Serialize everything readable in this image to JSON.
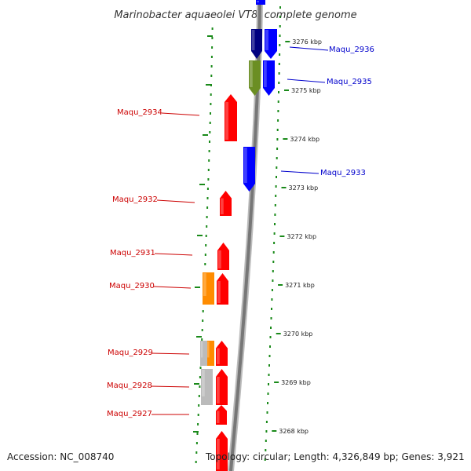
{
  "title": "Marinobacter aquaeolei VT8, complete genome",
  "accession": "Accession: NC_008740",
  "topology": "Topology: circular; Length: 4,326,849 bp; Genes: 3,921",
  "colors": {
    "backbone": "#777777",
    "dots": "#1a8a1a",
    "forward_label": "#0000cc",
    "reverse_label": "#cc0000",
    "red": "#ff0000",
    "blue": "#0000ff",
    "navy": "#000080",
    "olive": "#6b8e23",
    "orange": "#ff8c00",
    "gray": "#bbbbbb"
  },
  "ticks": [
    {
      "label": "3276 kbp"
    },
    {
      "label": "3275 kbp"
    },
    {
      "label": "3274 kbp"
    },
    {
      "label": "3273 kbp"
    },
    {
      "label": "3272 kbp"
    },
    {
      "label": "3271 kbp"
    },
    {
      "label": "3270 kbp"
    },
    {
      "label": "3269 kbp"
    },
    {
      "label": "3268 kbp"
    }
  ],
  "gene_labels": [
    {
      "name": "Maqu_2936",
      "strand": "forward"
    },
    {
      "name": "Maqu_2935",
      "strand": "forward"
    },
    {
      "name": "Maqu_2933",
      "strand": "forward"
    },
    {
      "name": "Maqu_2934",
      "strand": "reverse"
    },
    {
      "name": "Maqu_2932",
      "strand": "reverse"
    },
    {
      "name": "Maqu_2931",
      "strand": "reverse"
    },
    {
      "name": "Maqu_2930",
      "strand": "reverse"
    },
    {
      "name": "Maqu_2929",
      "strand": "reverse"
    },
    {
      "name": "Maqu_2928",
      "strand": "reverse"
    },
    {
      "name": "Maqu_2927",
      "strand": "reverse"
    }
  ],
  "features": [
    {
      "name": "gene-blue-1",
      "color": "blue"
    },
    {
      "name": "gene-navy-1",
      "color": "navy"
    },
    {
      "name": "gene-blue-2",
      "color": "blue"
    },
    {
      "name": "gene-olive-1",
      "color": "olive"
    },
    {
      "name": "gene-blue-3",
      "color": "blue"
    },
    {
      "name": "gene-blue-4",
      "color": "blue"
    },
    {
      "name": "gene-red-2934",
      "color": "red"
    },
    {
      "name": "gene-red-2932",
      "color": "red"
    },
    {
      "name": "gene-red-2931",
      "color": "red"
    },
    {
      "name": "gene-red-2930",
      "color": "red"
    },
    {
      "name": "gene-orange-2930",
      "color": "orange"
    },
    {
      "name": "gene-red-2929",
      "color": "red"
    },
    {
      "name": "gene-orange-2929",
      "color": "orange"
    },
    {
      "name": "gene-gray-2929",
      "color": "gray"
    },
    {
      "name": "gene-red-2928",
      "color": "red"
    },
    {
      "name": "gene-gray-2928",
      "color": "gray"
    },
    {
      "name": "gene-red-2927",
      "color": "red"
    },
    {
      "name": "gene-red-bottom",
      "color": "red"
    }
  ]
}
